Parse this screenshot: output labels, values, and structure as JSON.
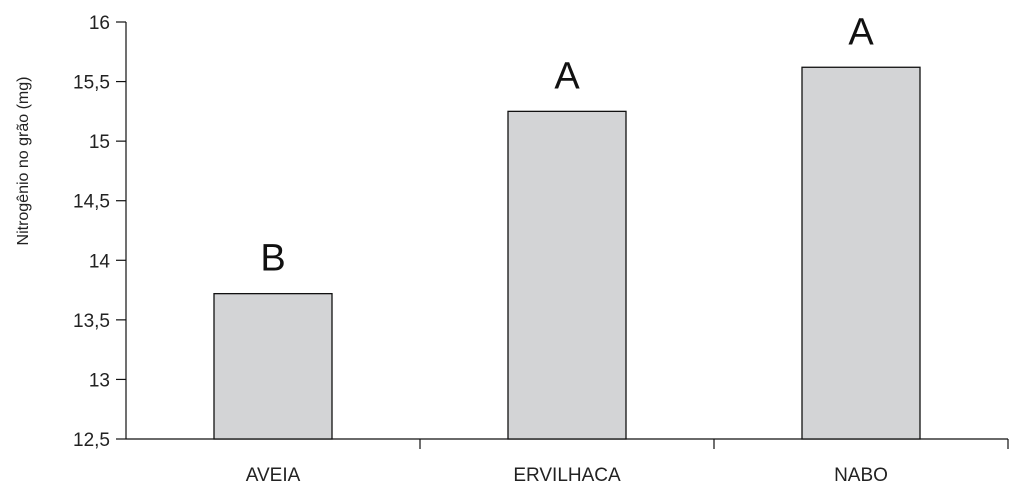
{
  "chart_data": {
    "type": "bar",
    "categories": [
      "AVEIA",
      "ERVILHACA",
      "NABO"
    ],
    "values": [
      13.72,
      15.25,
      15.62
    ],
    "significance_labels": [
      "B",
      "A",
      "A"
    ],
    "title": "",
    "xlabel": "",
    "ylabel": "Nitrogênio no grão (mg)",
    "ylim": [
      12.5,
      16
    ],
    "yticks": [
      12.5,
      13,
      13.5,
      14,
      14.5,
      15,
      15.5,
      16
    ],
    "ytick_labels": [
      "12,5",
      "13",
      "13,5",
      "14",
      "14,5",
      "15",
      "15,5",
      "16"
    ],
    "grid": false,
    "legend": "none",
    "bar_color": "#d3d4d6",
    "bar_edge_color": "#111111"
  }
}
